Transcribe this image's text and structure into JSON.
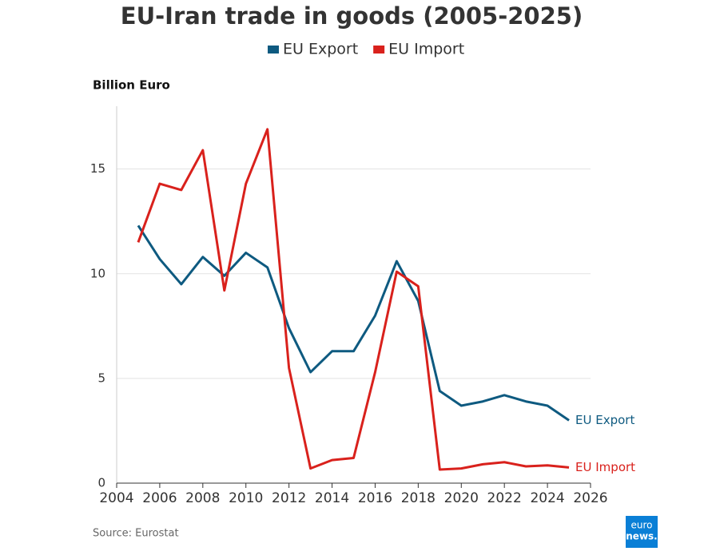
{
  "chart_data": {
    "type": "line",
    "title": "EU-Iran trade in goods (2005-2025)",
    "y_label": "Billion Euro",
    "source": "Source: Eurostat",
    "logo": [
      "euro",
      "news."
    ],
    "x": [
      2005,
      2006,
      2007,
      2008,
      2009,
      2010,
      2011,
      2012,
      2013,
      2014,
      2015,
      2016,
      2017,
      2018,
      2019,
      2020,
      2021,
      2022,
      2023,
      2024,
      2025
    ],
    "series": [
      {
        "name": "EU Export",
        "color": "#0e5a80",
        "values": [
          12.3,
          10.7,
          9.5,
          10.8,
          9.9,
          11.0,
          10.3,
          7.4,
          5.3,
          6.3,
          6.3,
          8.0,
          10.6,
          8.7,
          4.4,
          3.7,
          3.9,
          4.2,
          3.9,
          3.7,
          3.0
        ]
      },
      {
        "name": "EU Import",
        "color": "#d9211c",
        "values": [
          11.5,
          14.3,
          14.0,
          15.9,
          9.2,
          14.3,
          16.9,
          5.5,
          0.7,
          1.1,
          1.2,
          5.3,
          10.1,
          9.4,
          0.65,
          0.7,
          0.9,
          1.0,
          0.8,
          0.85,
          0.75
        ]
      }
    ],
    "xlim": [
      2004,
      2026
    ],
    "xticks": [
      2004,
      2006,
      2008,
      2010,
      2012,
      2014,
      2016,
      2018,
      2020,
      2022,
      2024,
      2026
    ],
    "ylim": [
      0,
      18
    ],
    "yticks": [
      0,
      5,
      10,
      15
    ],
    "grid": true,
    "legend": "top"
  }
}
